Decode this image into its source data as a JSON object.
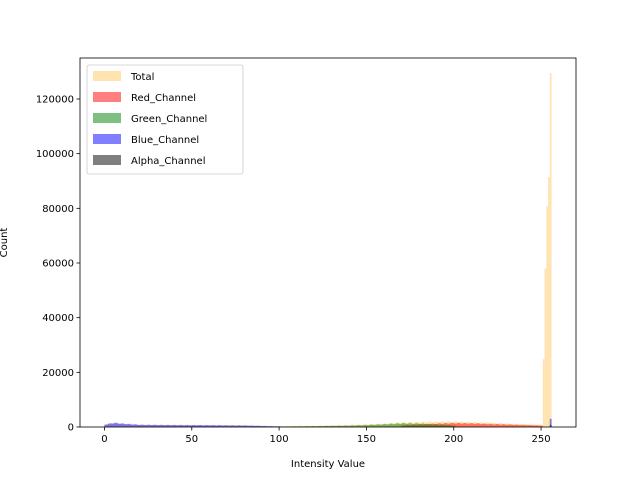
{
  "chart_data": {
    "type": "bar",
    "title": "",
    "xlabel": "Intensity Value",
    "ylabel": "Count",
    "xlim": [
      -14,
      270
    ],
    "ylim": [
      0,
      135000
    ],
    "xticks": [
      0,
      50,
      100,
      150,
      200,
      250
    ],
    "xtick_labels": [
      "0",
      "50",
      "100",
      "150",
      "200",
      "250"
    ],
    "yticks": [
      0,
      20000,
      40000,
      60000,
      80000,
      100000,
      120000
    ],
    "ytick_labels": [
      "0",
      "20000",
      "40000",
      "60000",
      "80000",
      "100000",
      "120000"
    ],
    "legend_position": "top-left",
    "grid": false,
    "series": [
      {
        "name": "Total",
        "color": "#ffa500",
        "opacity": 0.3,
        "points": [
          [
            0,
            900
          ],
          [
            5,
            1200
          ],
          [
            10,
            1000
          ],
          [
            20,
            700
          ],
          [
            40,
            600
          ],
          [
            60,
            550
          ],
          [
            80,
            500
          ],
          [
            100,
            350
          ],
          [
            120,
            450
          ],
          [
            140,
            700
          ],
          [
            160,
            1200
          ],
          [
            170,
            1600
          ],
          [
            180,
            1800
          ],
          [
            190,
            1900
          ],
          [
            200,
            1900
          ],
          [
            210,
            1700
          ],
          [
            220,
            1500
          ],
          [
            230,
            1200
          ],
          [
            240,
            1000
          ],
          [
            250,
            800
          ],
          [
            255,
            129500
          ]
        ]
      },
      {
        "name": "Red_Channel",
        "color": "#ff0000",
        "opacity": 0.5,
        "points": [
          [
            170,
            600
          ],
          [
            180,
            900
          ],
          [
            190,
            1200
          ],
          [
            200,
            1400
          ],
          [
            210,
            1300
          ],
          [
            220,
            1100
          ],
          [
            230,
            900
          ],
          [
            240,
            700
          ],
          [
            250,
            500
          ]
        ]
      },
      {
        "name": "Green_Channel",
        "color": "#008000",
        "opacity": 0.5,
        "points": [
          [
            100,
            150
          ],
          [
            120,
            300
          ],
          [
            140,
            500
          ],
          [
            150,
            700
          ],
          [
            160,
            1000
          ],
          [
            170,
            1300
          ],
          [
            180,
            1200
          ],
          [
            190,
            900
          ],
          [
            200,
            500
          ]
        ]
      },
      {
        "name": "Blue_Channel",
        "color": "#0000ff",
        "opacity": 0.5,
        "points": [
          [
            0,
            900
          ],
          [
            5,
            1500
          ],
          [
            10,
            1200
          ],
          [
            20,
            800
          ],
          [
            40,
            700
          ],
          [
            60,
            650
          ],
          [
            80,
            550
          ],
          [
            100,
            200
          ],
          [
            255,
            3000
          ]
        ]
      },
      {
        "name": "Alpha_Channel",
        "color": "#000000",
        "opacity": 0.5,
        "points": [
          [
            255,
            800
          ]
        ]
      }
    ]
  }
}
